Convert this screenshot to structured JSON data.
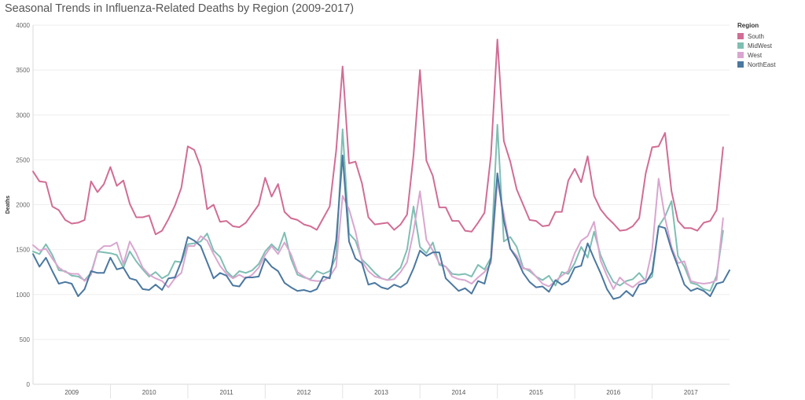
{
  "title": "Seasonal Trends in Influenza-Related Deaths by Region (2009-2017)",
  "legend": {
    "title": "Region",
    "items": [
      {
        "label": "South",
        "color": "#d16d95"
      },
      {
        "label": "MidWest",
        "color": "#7fbeb3"
      },
      {
        "label": "West",
        "color": "#d9a6cf"
      },
      {
        "label": "NorthEast",
        "color": "#4b78a0"
      }
    ]
  },
  "chart_data": {
    "type": "line",
    "title": "Seasonal Trends in Influenza-Related Deaths by Region (2009-2017)",
    "xlabel": "",
    "ylabel": "Deaths",
    "x_unit": "month",
    "x_start": "2009-01",
    "x_ticks": [
      "2009",
      "2010",
      "2011",
      "2012",
      "2013",
      "2014",
      "2015",
      "2016",
      "2017"
    ],
    "ylim": [
      0,
      4000
    ],
    "y_ticks": [
      0,
      500,
      1000,
      1500,
      2000,
      2500,
      3000,
      3500,
      4000
    ],
    "grid": true,
    "legend_position": "right",
    "series": [
      {
        "name": "South",
        "color": "#d16d95",
        "values": [
          2370,
          2260,
          2250,
          1980,
          1940,
          1830,
          1790,
          1800,
          1830,
          2260,
          2140,
          2230,
          2420,
          2210,
          2270,
          2010,
          1860,
          1860,
          1880,
          1670,
          1710,
          1840,
          1990,
          2190,
          2650,
          2610,
          2420,
          1950,
          2000,
          1810,
          1820,
          1760,
          1750,
          1800,
          1900,
          2000,
          2300,
          2090,
          2230,
          1920,
          1850,
          1830,
          1780,
          1760,
          1720,
          1850,
          1980,
          2600,
          3540,
          2460,
          2480,
          2240,
          1860,
          1780,
          1790,
          1800,
          1720,
          1780,
          1890,
          2550,
          3500,
          2490,
          2320,
          1970,
          1970,
          1820,
          1820,
          1710,
          1700,
          1800,
          1910,
          2550,
          3840,
          2710,
          2480,
          2170,
          2000,
          1830,
          1820,
          1760,
          1770,
          1920,
          1920,
          2270,
          2400,
          2250,
          2540,
          2100,
          1950,
          1860,
          1790,
          1710,
          1720,
          1760,
          1850,
          2350,
          2640,
          2650,
          2800,
          2150,
          1820,
          1740,
          1740,
          1710,
          1800,
          1820,
          1940,
          2640
        ]
      },
      {
        "name": "MidWest",
        "color": "#7fbeb3",
        "values": [
          1480,
          1450,
          1560,
          1440,
          1270,
          1260,
          1210,
          1200,
          1160,
          1240,
          1480,
          1470,
          1460,
          1440,
          1300,
          1480,
          1370,
          1280,
          1200,
          1250,
          1180,
          1220,
          1370,
          1360,
          1560,
          1570,
          1590,
          1680,
          1490,
          1420,
          1260,
          1190,
          1260,
          1240,
          1270,
          1340,
          1480,
          1560,
          1490,
          1690,
          1400,
          1220,
          1190,
          1170,
          1260,
          1230,
          1260,
          1420,
          2840,
          1680,
          1600,
          1390,
          1320,
          1240,
          1180,
          1160,
          1230,
          1300,
          1500,
          1980,
          1530,
          1460,
          1580,
          1330,
          1310,
          1230,
          1220,
          1230,
          1200,
          1330,
          1280,
          1410,
          2890,
          1590,
          1640,
          1530,
          1300,
          1260,
          1200,
          1160,
          1210,
          1100,
          1250,
          1230,
          1350,
          1530,
          1410,
          1700,
          1440,
          1270,
          1140,
          1100,
          1150,
          1170,
          1240,
          1150,
          1200,
          1760,
          1870,
          2040,
          1430,
          1310,
          1130,
          1110,
          1060,
          1040,
          1210,
          1710
        ]
      },
      {
        "name": "West",
        "color": "#d9a6cf",
        "values": [
          1550,
          1490,
          1510,
          1400,
          1300,
          1250,
          1230,
          1230,
          1150,
          1220,
          1480,
          1540,
          1540,
          1580,
          1340,
          1590,
          1460,
          1300,
          1220,
          1180,
          1150,
          1080,
          1180,
          1240,
          1540,
          1540,
          1650,
          1600,
          1450,
          1320,
          1230,
          1180,
          1220,
          1180,
          1220,
          1300,
          1440,
          1540,
          1450,
          1580,
          1450,
          1250,
          1200,
          1160,
          1150,
          1150,
          1200,
          1310,
          2100,
          1950,
          1700,
          1370,
          1260,
          1200,
          1180,
          1160,
          1170,
          1250,
          1360,
          1700,
          2150,
          1610,
          1490,
          1350,
          1310,
          1200,
          1170,
          1160,
          1120,
          1190,
          1250,
          1350,
          2260,
          1900,
          1510,
          1430,
          1290,
          1280,
          1200,
          1120,
          1090,
          1150,
          1210,
          1260,
          1460,
          1600,
          1650,
          1810,
          1380,
          1210,
          1060,
          1190,
          1120,
          1080,
          1140,
          1170,
          1500,
          2290,
          1850,
          1530,
          1350,
          1370,
          1150,
          1130,
          1120,
          1130,
          1160,
          1850
        ]
      },
      {
        "name": "NorthEast",
        "color": "#4b78a0",
        "values": [
          1450,
          1310,
          1410,
          1260,
          1120,
          1140,
          1120,
          980,
          1060,
          1260,
          1240,
          1240,
          1410,
          1280,
          1300,
          1180,
          1160,
          1060,
          1050,
          1110,
          1050,
          1180,
          1190,
          1370,
          1640,
          1600,
          1540,
          1360,
          1180,
          1240,
          1210,
          1100,
          1090,
          1190,
          1190,
          1200,
          1400,
          1310,
          1260,
          1130,
          1080,
          1040,
          1050,
          1030,
          1060,
          1200,
          1180,
          1600,
          2550,
          1590,
          1400,
          1350,
          1110,
          1130,
          1080,
          1060,
          1110,
          1080,
          1130,
          1290,
          1490,
          1430,
          1470,
          1470,
          1180,
          1110,
          1040,
          1070,
          1010,
          1150,
          1120,
          1400,
          2350,
          1820,
          1510,
          1400,
          1240,
          1140,
          1080,
          1090,
          1030,
          1160,
          1110,
          1150,
          1300,
          1320,
          1570,
          1400,
          1240,
          1060,
          950,
          970,
          1040,
          980,
          1110,
          1130,
          1250,
          1760,
          1740,
          1500,
          1310,
          1110,
          1040,
          1070,
          1040,
          980,
          1120,
          1140,
          1270
        ]
      }
    ]
  }
}
